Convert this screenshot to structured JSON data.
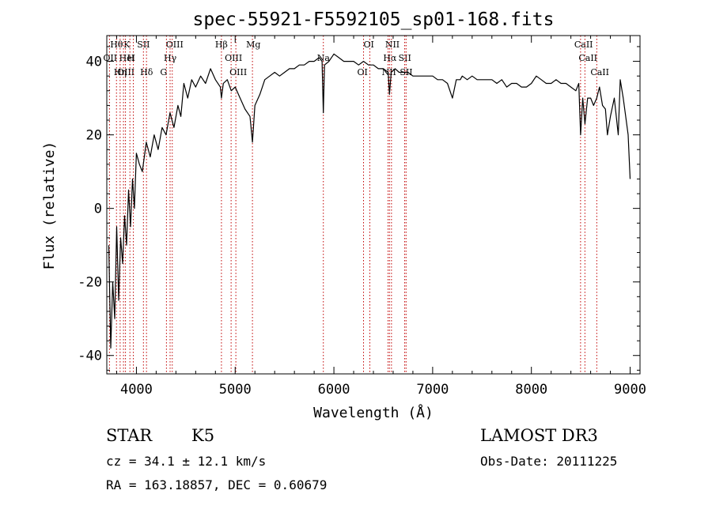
{
  "chart_data": {
    "type": "line",
    "title": "spec-55921-F5592105_sp01-168.fits",
    "xlabel": "Wavelength (Å)",
    "ylabel": "Flux (relative)",
    "xlim": [
      3700,
      9100
    ],
    "ylim": [
      -45,
      47
    ],
    "x_ticks": [
      4000,
      5000,
      6000,
      7000,
      8000,
      9000
    ],
    "y_ticks": [
      -40,
      -20,
      0,
      20,
      40
    ],
    "series": [
      {
        "name": "flux",
        "x": [
          3720,
          3740,
          3760,
          3780,
          3800,
          3820,
          3840,
          3860,
          3880,
          3900,
          3920,
          3940,
          3960,
          3980,
          4000,
          4030,
          4060,
          4100,
          4140,
          4180,
          4220,
          4260,
          4300,
          4340,
          4380,
          4420,
          4450,
          4480,
          4520,
          4560,
          4600,
          4650,
          4700,
          4750,
          4800,
          4850,
          4861,
          4880,
          4920,
          4960,
          5000,
          5050,
          5100,
          5150,
          5175,
          5200,
          5250,
          5300,
          5350,
          5400,
          5450,
          5500,
          5550,
          5600,
          5650,
          5700,
          5750,
          5800,
          5850,
          5880,
          5893,
          5905,
          5950,
          6000,
          6050,
          6100,
          6150,
          6200,
          6250,
          6300,
          6350,
          6400,
          6450,
          6500,
          6550,
          6563,
          6580,
          6620,
          6660,
          6700,
          6750,
          6800,
          6850,
          6900,
          6950,
          7000,
          7050,
          7100,
          7150,
          7200,
          7240,
          7280,
          7300,
          7350,
          7400,
          7450,
          7500,
          7550,
          7600,
          7650,
          7700,
          7750,
          7800,
          7850,
          7900,
          7950,
          8000,
          8050,
          8100,
          8150,
          8200,
          8250,
          8300,
          8350,
          8400,
          8450,
          8480,
          8498,
          8520,
          8542,
          8570,
          8600,
          8630,
          8662,
          8690,
          8720,
          8750,
          8770,
          8800,
          8840,
          8880,
          8900,
          8930,
          8950,
          8980,
          9000
        ],
        "values": [
          -10,
          -38,
          -20,
          -30,
          -5,
          -25,
          -8,
          -15,
          -2,
          -10,
          5,
          -5,
          8,
          0,
          15,
          12,
          10,
          18,
          14,
          20,
          16,
          22,
          20,
          26,
          22,
          28,
          25,
          34,
          30,
          35,
          33,
          36,
          34,
          38,
          35,
          33,
          30,
          34,
          35,
          32,
          33,
          30,
          27,
          25,
          18,
          28,
          31,
          35,
          36,
          37,
          36,
          37,
          38,
          38,
          39,
          39,
          40,
          40,
          41,
          40,
          26,
          39,
          40,
          42,
          41,
          40,
          40,
          40,
          39,
          40,
          39,
          39,
          38,
          38,
          37,
          31,
          37,
          38,
          37,
          37,
          37,
          36,
          36,
          36,
          36,
          36,
          35,
          35,
          34,
          30,
          35,
          35,
          36,
          35,
          36,
          35,
          35,
          35,
          35,
          34,
          35,
          33,
          34,
          34,
          33,
          33,
          34,
          36,
          35,
          34,
          34,
          35,
          34,
          34,
          33,
          32,
          34,
          20,
          30,
          23,
          30,
          30,
          28,
          30,
          33,
          28,
          27,
          20,
          25,
          30,
          20,
          35,
          30,
          26,
          20,
          8
        ]
      }
    ],
    "line_markers": [
      {
        "label": "Hθ",
        "x": 3798
      },
      {
        "label": "OII",
        "x": 3727
      },
      {
        "label": "OIII",
        "x": 3869
      },
      {
        "label": "K",
        "x": 3934
      },
      {
        "label": "HeI",
        "x": 3889
      },
      {
        "label": "Hη",
        "x": 3835
      },
      {
        "label": "SII",
        "x": 4071
      },
      {
        "label": "H",
        "x": 3969
      },
      {
        "label": "Hδ",
        "x": 4102
      },
      {
        "label": "OIII",
        "x": 4363
      },
      {
        "label": "Hγ",
        "x": 4341
      },
      {
        "label": "G",
        "x": 4304
      },
      {
        "label": "Hβ",
        "x": 4861
      },
      {
        "label": "OIII",
        "x": 4959
      },
      {
        "label": "OIII",
        "x": 5007
      },
      {
        "label": "Mg",
        "x": 5175
      },
      {
        "label": "Na",
        "x": 5893
      },
      {
        "label": "OI",
        "x": 6300
      },
      {
        "label": "OI",
        "x": 6364
      },
      {
        "label": "Hα",
        "x": 6563
      },
      {
        "label": "NII",
        "x": 6548
      },
      {
        "label": "NII",
        "x": 6583
      },
      {
        "label": "SII",
        "x": 6717
      },
      {
        "label": "SII",
        "x": 6731
      },
      {
        "label": "CaII",
        "x": 8498
      },
      {
        "label": "CaII",
        "x": 8542
      },
      {
        "label": "CaII",
        "x": 8662
      }
    ]
  },
  "info": {
    "class_label": "STAR",
    "subclass": "K5",
    "survey": "LAMOST DR3",
    "cz": "cz = 34.1 ± 12.1 km/s",
    "obs_date": "Obs-Date: 20111225",
    "coords": "RA = 163.18857, DEC =   0.60679"
  }
}
